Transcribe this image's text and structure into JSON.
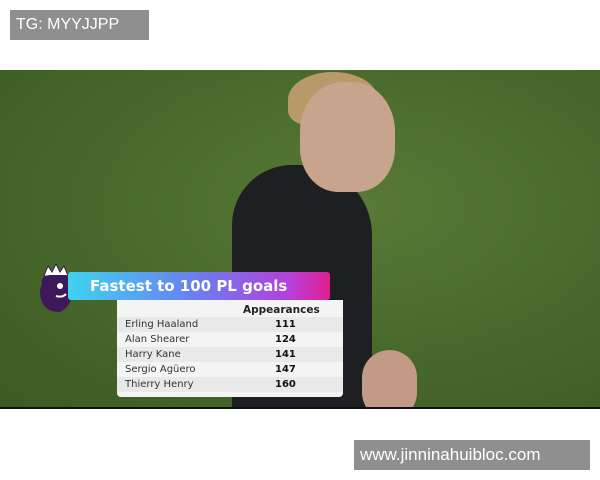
{
  "watermarks": {
    "top": "TG: MYYJJPP",
    "bottom": "www.jinninahuibloc.com"
  },
  "graphic": {
    "title": "Fastest to 100 PL goals",
    "column_header": "Appearances",
    "rows": [
      {
        "name": "Erling Haaland",
        "appearances": "111"
      },
      {
        "name": "Alan Shearer",
        "appearances": "124"
      },
      {
        "name": "Harry Kane",
        "appearances": "141"
      },
      {
        "name": "Sergio Agüero",
        "appearances": "147"
      },
      {
        "name": "Thierry Henry",
        "appearances": "160"
      }
    ],
    "colors": {
      "banner_start": "#3fd3ef",
      "banner_end": "#e0208f",
      "logo": "#3d195b"
    }
  }
}
